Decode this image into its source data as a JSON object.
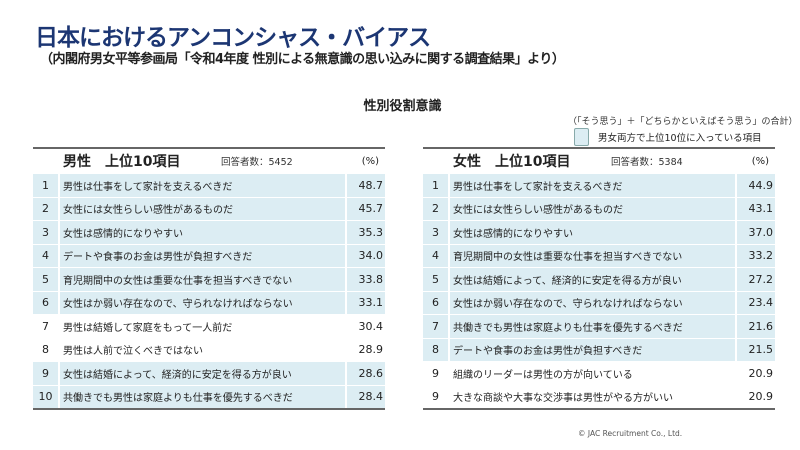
{
  "title": "日本におけるアンコンシャス・バイアス",
  "subtitle": "（内閣府男女平等参画局「令和4年度 性別による無意識の思い込みに関する調査結果」より）",
  "section_title": "性別役割意識",
  "note": "（「そう思う」＋「どちらかといえばそう思う」の合計）",
  "legend_label": "男女両方で上位10位に入っている項目",
  "highlight_color": "#dcedf3",
  "title_color": "#1c3673",
  "tables": [
    {
      "heading": "男性　上位10項目",
      "respondents": "回答者数：5452",
      "unit": "(%)",
      "rows": [
        {
          "rank": "1",
          "text": "男性は仕事をして家計を支えるべきだ",
          "value": "48.7",
          "both": true
        },
        {
          "rank": "2",
          "text": "女性には女性らしい感性があるものだ",
          "value": "45.7",
          "both": true
        },
        {
          "rank": "3",
          "text": "女性は感情的になりやすい",
          "value": "35.3",
          "both": true
        },
        {
          "rank": "4",
          "text": "デートや食事のお金は男性が負担すべきだ",
          "value": "34.0",
          "both": true
        },
        {
          "rank": "5",
          "text": "育児期間中の女性は重要な仕事を担当すべきでない",
          "value": "33.8",
          "both": true
        },
        {
          "rank": "6",
          "text": "女性はか弱い存在なので、守られなければならない",
          "value": "33.1",
          "both": true
        },
        {
          "rank": "7",
          "text": "男性は結婚して家庭をもって一人前だ",
          "value": "30.4",
          "both": false
        },
        {
          "rank": "8",
          "text": "男性は人前で泣くべきではない",
          "value": "28.9",
          "both": false
        },
        {
          "rank": "9",
          "text": "女性は結婚によって、経済的に安定を得る方が良い",
          "value": "28.6",
          "both": true
        },
        {
          "rank": "10",
          "text": "共働きでも男性は家庭よりも仕事を優先するべきだ",
          "value": "28.4",
          "both": true
        }
      ]
    },
    {
      "heading": "女性　上位10項目",
      "respondents": "回答者数：5384",
      "unit": "(%)",
      "rows": [
        {
          "rank": "1",
          "text": "男性は仕事をして家計を支えるべきだ",
          "value": "44.9",
          "both": true
        },
        {
          "rank": "2",
          "text": "女性には女性らしい感性があるものだ",
          "value": "43.1",
          "both": true
        },
        {
          "rank": "3",
          "text": "女性は感情的になりやすい",
          "value": "37.0",
          "both": true
        },
        {
          "rank": "4",
          "text": "育児期間中の女性は重要な仕事を担当すべきでない",
          "value": "33.2",
          "both": true
        },
        {
          "rank": "5",
          "text": "女性は結婚によって、経済的に安定を得る方が良い",
          "value": "27.2",
          "both": true
        },
        {
          "rank": "6",
          "text": "女性はか弱い存在なので、守られなければならない",
          "value": "23.4",
          "both": true
        },
        {
          "rank": "7",
          "text": "共働きでも男性は家庭よりも仕事を優先するべきだ",
          "value": "21.6",
          "both": true
        },
        {
          "rank": "8",
          "text": "デートや食事のお金は男性が負担すべきだ",
          "value": "21.5",
          "both": true
        },
        {
          "rank": "9",
          "text": "組織のリーダーは男性の方が向いている",
          "value": "20.9",
          "both": false
        },
        {
          "rank": "9",
          "text": "大きな商談や大事な交渉事は男性がやる方がいい",
          "value": "20.9",
          "both": false
        }
      ]
    }
  ],
  "copyright": "© JAC Recruitment Co., Ltd."
}
